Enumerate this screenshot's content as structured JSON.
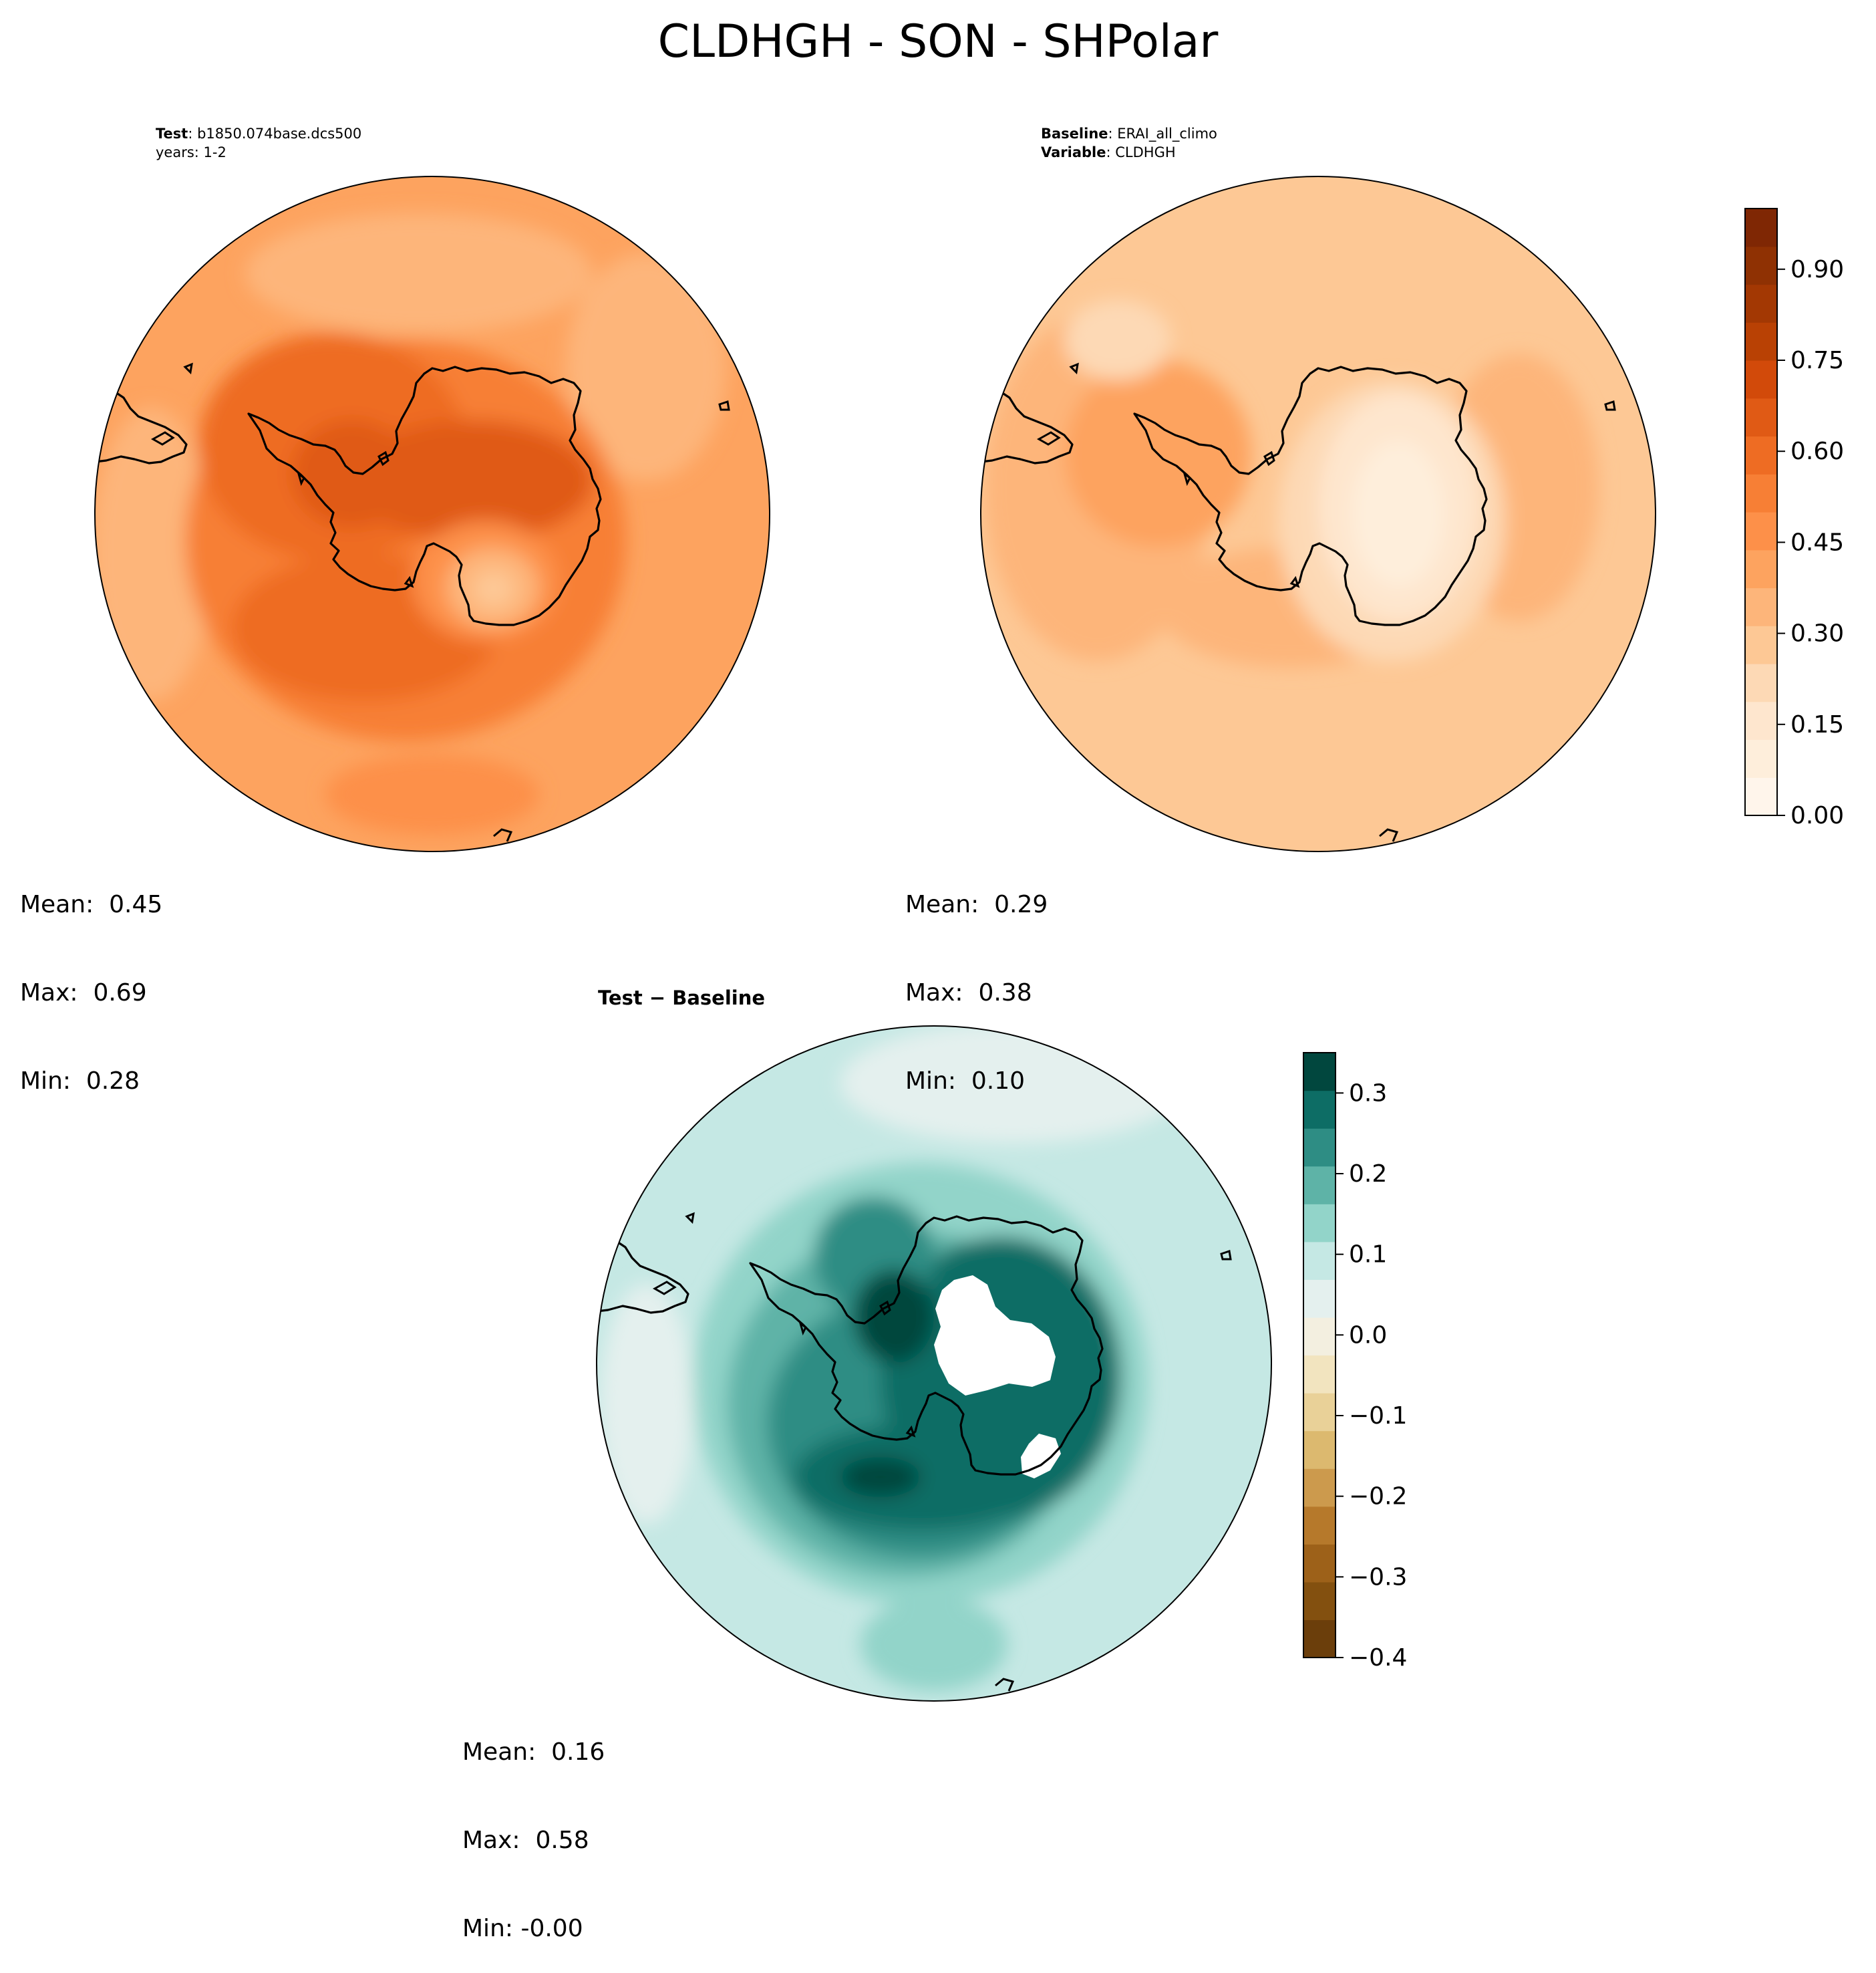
{
  "figure": {
    "title": "CLDHGH - SON - SHPolar"
  },
  "panels": {
    "test": {
      "label": "Test",
      "sep": ": ",
      "case": "b1850.074base.dcs500",
      "years": "years: 1-2",
      "stats": {
        "mean": "Mean:  0.45",
        "max": "Max:  0.69",
        "min": "Min:  0.28"
      }
    },
    "baseline": {
      "label": "Baseline",
      "sep": ": ",
      "case": "ERAI_all_climo",
      "variable_label": "Variable",
      "variable": "CLDHGH",
      "stats": {
        "mean": "Mean:  0.29",
        "max": "Max:  0.38",
        "min": "Min:  0.10"
      }
    },
    "diff": {
      "title": "Test − Baseline",
      "stats": {
        "mean": "Mean:  0.16",
        "max": "Max:  0.58",
        "min": "Min: -0.00"
      }
    }
  },
  "chart_data": [
    {
      "type": "heatmap",
      "name": "test",
      "projection": "south-polar-stereographic",
      "field": "CLDHGH",
      "season": "SON",
      "mean": 0.45,
      "max": 0.69,
      "min": 0.28,
      "colormap": "Oranges",
      "levels": [
        0.0,
        0.05,
        0.1,
        0.15,
        0.2,
        0.25,
        0.3,
        0.35,
        0.4,
        0.45,
        0.5,
        0.55,
        0.6,
        0.65,
        0.7,
        0.75,
        0.8,
        0.85,
        0.9,
        0.95,
        1.0
      ]
    },
    {
      "type": "heatmap",
      "name": "baseline",
      "projection": "south-polar-stereographic",
      "field": "CLDHGH",
      "season": "SON",
      "mean": 0.29,
      "max": 0.38,
      "min": 0.1,
      "colormap": "Oranges",
      "colorbar": {
        "range": [
          0.0,
          1.0
        ],
        "ticks": [
          0.0,
          0.15,
          0.3,
          0.45,
          0.6,
          0.75,
          0.9
        ],
        "tick_labels": [
          "0.00",
          "0.15",
          "0.30",
          "0.45",
          "0.60",
          "0.75",
          "0.90"
        ],
        "colors": [
          "#fff5eb",
          "#feeedb",
          "#fee6ce",
          "#fdd9b5",
          "#fdc895",
          "#fdb57a",
          "#fda35f",
          "#fd9049",
          "#f77f35",
          "#ee6c23",
          "#e05a15",
          "#d24a0a",
          "#b94104",
          "#a33803",
          "#8f3103",
          "#7f2704"
        ]
      }
    },
    {
      "type": "heatmap",
      "name": "difference",
      "projection": "south-polar-stereographic",
      "field": "CLDHGH (Test − Baseline)",
      "season": "SON",
      "mean": 0.16,
      "max": 0.58,
      "min": -0.0,
      "colormap": "BrBG",
      "colorbar": {
        "range": [
          -0.4,
          0.35
        ],
        "ticks": [
          -0.4,
          -0.3,
          -0.2,
          -0.1,
          0.0,
          0.1,
          0.2,
          0.3
        ],
        "tick_labels": [
          "−0.4",
          "−0.3",
          "−0.2",
          "−0.1",
          "0.0",
          "0.1",
          "0.2",
          "0.3"
        ],
        "colors": [
          "#6b3e0b",
          "#83500f",
          "#9d6119",
          "#b6792b",
          "#cc9a4d",
          "#dcb96f",
          "#e9d198",
          "#f2e4bf",
          "#f3efe0",
          "#e4f0ee",
          "#c5e8e4",
          "#92d4c9",
          "#5eb3a7",
          "#2e8d84",
          "#0d6d65",
          "#01473e"
        ]
      }
    }
  ]
}
